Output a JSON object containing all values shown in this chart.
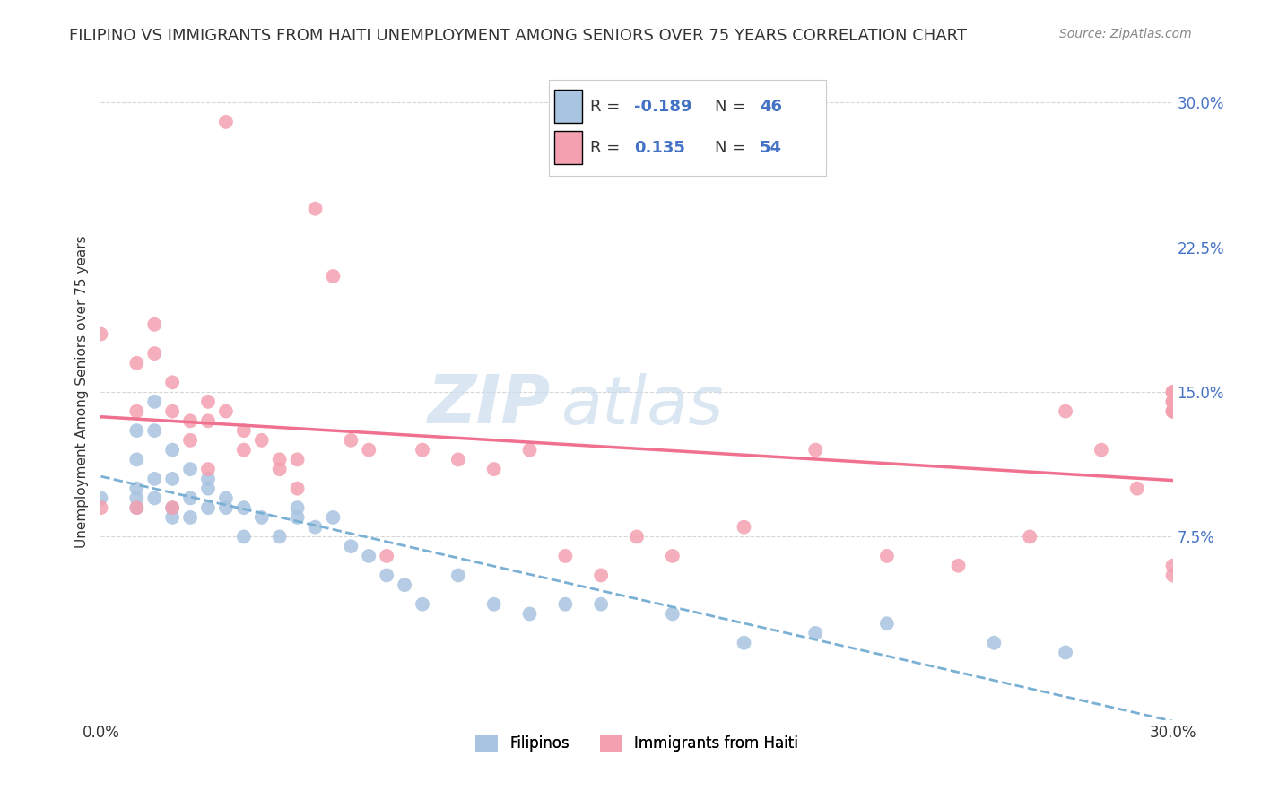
{
  "title": "FILIPINO VS IMMIGRANTS FROM HAITI UNEMPLOYMENT AMONG SENIORS OVER 75 YEARS CORRELATION CHART",
  "source": "Source: ZipAtlas.com",
  "ylabel": "Unemployment Among Seniors over 75 years",
  "xlim": [
    0.0,
    0.3
  ],
  "ylim": [
    -0.02,
    0.32
  ],
  "legend_label1": "Filipinos",
  "legend_label2": "Immigrants from Haiti",
  "R1": -0.189,
  "N1": 46,
  "R2": 0.135,
  "N2": 54,
  "color_filipino": "#a8c4e0",
  "color_haiti": "#f4a0b0",
  "color_line_filipino": "#7ab0d4",
  "color_line_haiti": "#f07090",
  "filipinos_x": [
    0.0,
    0.01,
    0.01,
    0.01,
    0.01,
    0.01,
    0.015,
    0.015,
    0.015,
    0.015,
    0.02,
    0.02,
    0.02,
    0.02,
    0.025,
    0.025,
    0.025,
    0.03,
    0.03,
    0.03,
    0.035,
    0.035,
    0.04,
    0.04,
    0.045,
    0.05,
    0.055,
    0.055,
    0.06,
    0.065,
    0.07,
    0.075,
    0.08,
    0.085,
    0.09,
    0.1,
    0.11,
    0.12,
    0.13,
    0.14,
    0.16,
    0.18,
    0.2,
    0.22,
    0.25,
    0.27
  ],
  "filipinos_y": [
    0.095,
    0.13,
    0.115,
    0.1,
    0.095,
    0.09,
    0.145,
    0.13,
    0.105,
    0.095,
    0.12,
    0.105,
    0.09,
    0.085,
    0.11,
    0.095,
    0.085,
    0.105,
    0.1,
    0.09,
    0.095,
    0.09,
    0.09,
    0.075,
    0.085,
    0.075,
    0.09,
    0.085,
    0.08,
    0.085,
    0.07,
    0.065,
    0.055,
    0.05,
    0.04,
    0.055,
    0.04,
    0.035,
    0.04,
    0.04,
    0.035,
    0.02,
    0.025,
    0.03,
    0.02,
    0.015
  ],
  "haiti_x": [
    0.0,
    0.0,
    0.01,
    0.01,
    0.01,
    0.015,
    0.015,
    0.02,
    0.02,
    0.02,
    0.025,
    0.025,
    0.03,
    0.03,
    0.03,
    0.035,
    0.035,
    0.04,
    0.04,
    0.045,
    0.05,
    0.05,
    0.055,
    0.055,
    0.06,
    0.065,
    0.07,
    0.075,
    0.08,
    0.09,
    0.1,
    0.11,
    0.12,
    0.13,
    0.14,
    0.15,
    0.16,
    0.18,
    0.2,
    0.22,
    0.24,
    0.26,
    0.27,
    0.28,
    0.29,
    0.3,
    0.3,
    0.3,
    0.3,
    0.3,
    0.3,
    0.3,
    0.3,
    0.3
  ],
  "haiti_y": [
    0.18,
    0.09,
    0.165,
    0.14,
    0.09,
    0.185,
    0.17,
    0.155,
    0.14,
    0.09,
    0.135,
    0.125,
    0.145,
    0.135,
    0.11,
    0.29,
    0.14,
    0.13,
    0.12,
    0.125,
    0.115,
    0.11,
    0.115,
    0.1,
    0.245,
    0.21,
    0.125,
    0.12,
    0.065,
    0.12,
    0.115,
    0.11,
    0.12,
    0.065,
    0.055,
    0.075,
    0.065,
    0.08,
    0.12,
    0.065,
    0.06,
    0.075,
    0.14,
    0.12,
    0.1,
    0.145,
    0.15,
    0.06,
    0.055,
    0.14,
    0.15,
    0.14,
    0.145,
    0.14
  ]
}
